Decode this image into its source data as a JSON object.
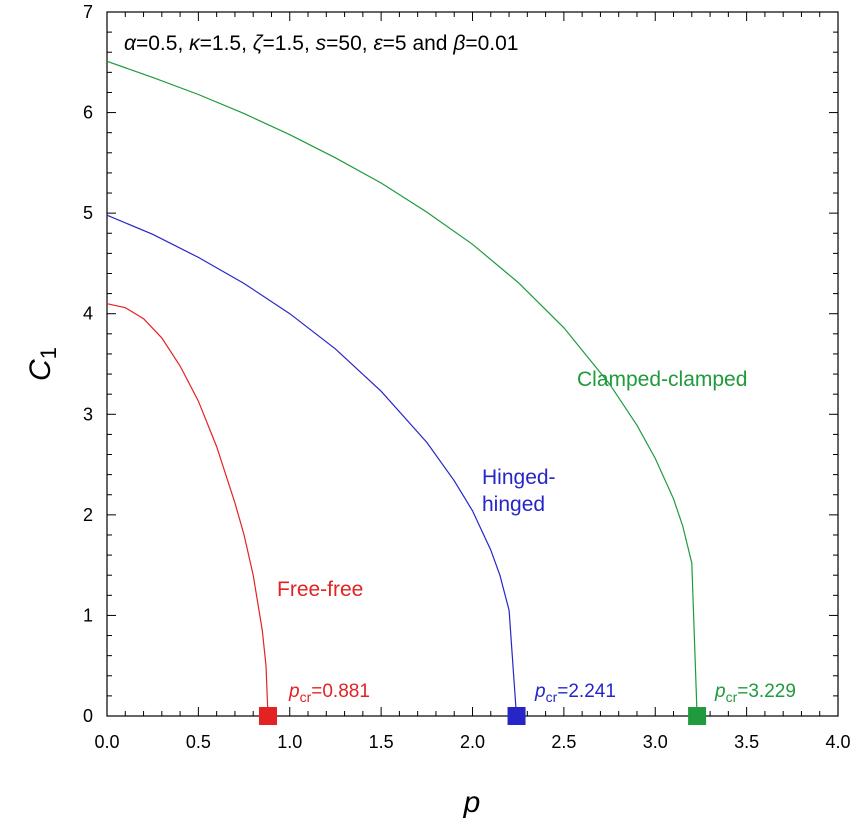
{
  "chart_data": {
    "type": "line",
    "xlabel": "p",
    "ylabel_main": "C",
    "ylabel_sub": "1",
    "xlim": [
      0,
      4
    ],
    "ylim": [
      0,
      7
    ],
    "xticks": [
      "0.0",
      "0.5",
      "1.0",
      "1.5",
      "2.0",
      "2.5",
      "3.0",
      "3.5",
      "4.0"
    ],
    "yticks": [
      "0",
      "1",
      "2",
      "3",
      "4",
      "5",
      "6",
      "7"
    ],
    "grid": false,
    "parameters": [
      {
        "sym": "α",
        "val": "=0.5, "
      },
      {
        "sym": "κ",
        "val": "=1.5, "
      },
      {
        "sym": "ζ",
        "val": "=1.5, "
      },
      {
        "sym": "s",
        "val": "=50, "
      },
      {
        "sym": "ε",
        "val": "=5 and "
      },
      {
        "sym": "β",
        "val": "=0.01"
      }
    ],
    "series": [
      {
        "name": "Free-free",
        "color": "#e32222",
        "c0": 4.1,
        "pcr": 0.881,
        "pcr_prefix": "p",
        "pcr_sub": "cr",
        "pcr_text": "=0.881",
        "x": [
          0,
          0.1,
          0.2,
          0.3,
          0.4,
          0.5,
          0.6,
          0.7,
          0.75,
          0.8,
          0.85,
          0.87,
          0.881
        ],
        "y": [
          4.1,
          4.06,
          3.95,
          3.76,
          3.48,
          3.13,
          2.68,
          2.12,
          1.8,
          1.4,
          0.85,
          0.5,
          0
        ]
      },
      {
        "name": "Hinged-hinged",
        "label_lines": [
          "Hinged-",
          "hinged"
        ],
        "color": "#2626c8",
        "c0": 4.98,
        "pcr": 2.241,
        "pcr_prefix": "p",
        "pcr_sub": "cr",
        "pcr_text": "=2.241",
        "x": [
          0,
          0.25,
          0.5,
          0.75,
          1.0,
          1.25,
          1.5,
          1.75,
          1.9,
          2.0,
          2.1,
          2.15,
          2.2,
          2.241
        ],
        "y": [
          4.98,
          4.79,
          4.56,
          4.3,
          4.0,
          3.65,
          3.23,
          2.72,
          2.34,
          2.04,
          1.65,
          1.4,
          1.05,
          0
        ]
      },
      {
        "name": "Clamped-clamped",
        "color": "#1f9a3c",
        "c0": 6.51,
        "pcr": 3.229,
        "pcr_prefix": "p",
        "pcr_sub": "cr",
        "pcr_text": "=3.229",
        "x": [
          0,
          0.25,
          0.5,
          0.75,
          1.0,
          1.25,
          1.5,
          1.75,
          2.0,
          2.25,
          2.5,
          2.75,
          2.9,
          3.0,
          3.1,
          3.15,
          3.2,
          3.229
        ],
        "y": [
          6.51,
          6.35,
          6.18,
          5.99,
          5.78,
          5.55,
          5.3,
          5.01,
          4.69,
          4.31,
          3.86,
          3.3,
          2.89,
          2.56,
          2.16,
          1.89,
          1.52,
          0
        ]
      }
    ]
  }
}
